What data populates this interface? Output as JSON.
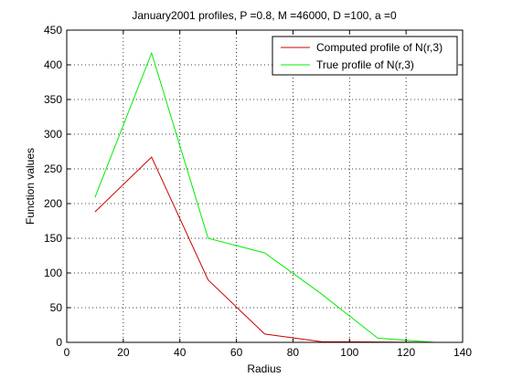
{
  "chart_data": {
    "type": "line",
    "title": "January2001 profiles, P =0.8, M =46000, D =100, a =0",
    "xlabel": "Radius",
    "ylabel": "Function values",
    "xlim": [
      0,
      140
    ],
    "ylim": [
      0,
      450
    ],
    "xticks": [
      0,
      20,
      40,
      60,
      80,
      100,
      120,
      140
    ],
    "yticks": [
      0,
      50,
      100,
      150,
      200,
      250,
      300,
      350,
      400,
      450
    ],
    "grid": true,
    "legend_position": "top-right",
    "series": [
      {
        "name": "Computed profile of N(r,3)",
        "color": "#cc0000",
        "x": [
          10,
          30,
          50,
          70,
          90,
          110,
          130
        ],
        "y": [
          188,
          267,
          90,
          12,
          1,
          0.5,
          0
        ]
      },
      {
        "name": "True profile of N(r,3)",
        "color": "#00ee00",
        "x": [
          10,
          30,
          50,
          70,
          90,
          110,
          130
        ],
        "y": [
          209,
          417,
          150,
          129,
          70,
          6,
          0
        ]
      }
    ]
  }
}
